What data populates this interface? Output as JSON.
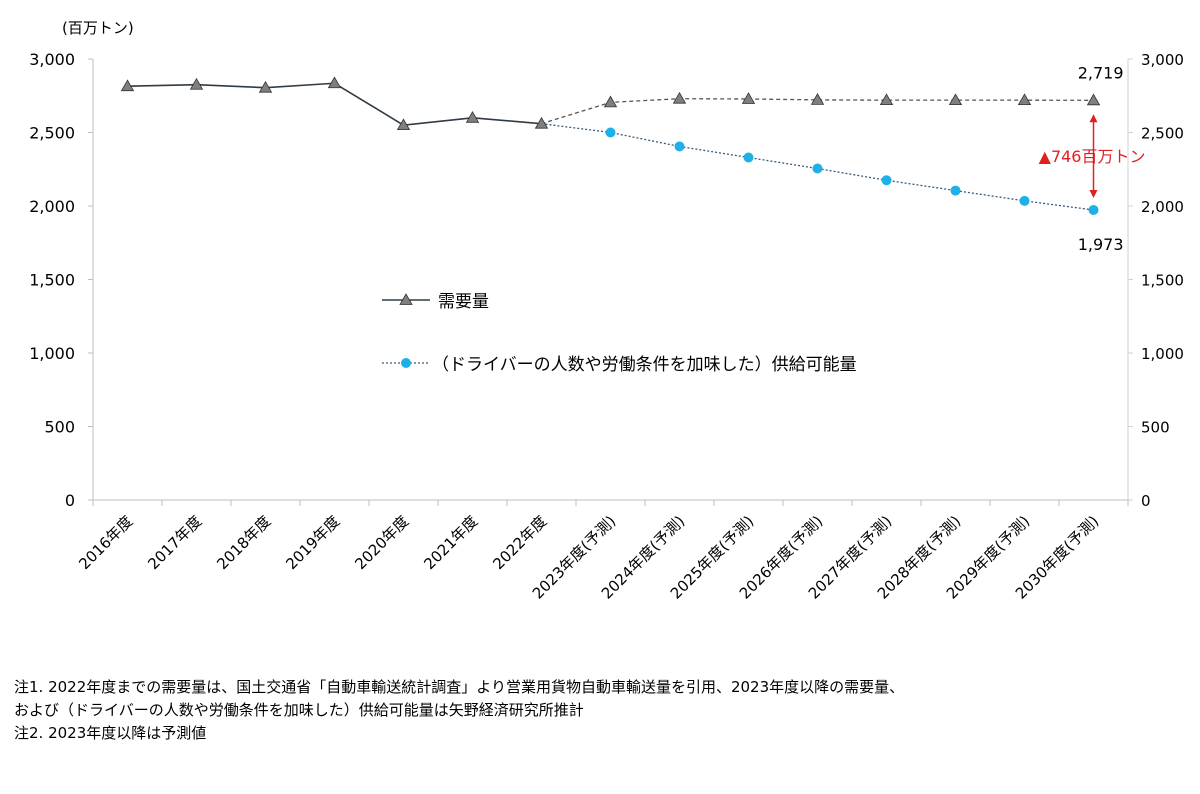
{
  "chart_data": {
    "type": "line",
    "unit_label": "(百万トン)",
    "categories": [
      "2016年度",
      "2017年度",
      "2018年度",
      "2019年度",
      "2020年度",
      "2021年度",
      "2022年度",
      "2023年度(予測)",
      "2024年度(予測)",
      "2025年度(予測)",
      "2026年度(予測)",
      "2027年度(予測)",
      "2028年度(予測)",
      "2029年度(予測)",
      "2030年度(予測)"
    ],
    "ylim": [
      0,
      3000
    ],
    "y_ticks": [
      "0",
      "500",
      "1,000",
      "1,500",
      "2,000",
      "2,500",
      "3,000"
    ],
    "series": [
      {
        "name": "需要量",
        "color": "#2f3b45",
        "marker": "triangle",
        "marker_color": "#7f7f7f",
        "values": [
          2815,
          2825,
          2805,
          2835,
          2550,
          2600,
          2560,
          2705,
          2730,
          2728,
          2722,
          2720,
          2720,
          2720,
          2719
        ]
      },
      {
        "name": "（ドライバーの人数や労働条件を加味した）供給可能量",
        "color": "#3a5a78",
        "marker": "circle",
        "marker_color": "#1fb0e8",
        "values": [
          null,
          null,
          null,
          null,
          null,
          null,
          2560,
          2500,
          2405,
          2330,
          2255,
          2175,
          2105,
          2035,
          1973
        ]
      }
    ],
    "annotations": {
      "end_demand": "2,719",
      "end_supply": "1,973",
      "gap": "▲746百万トン",
      "gap_color": "#e02020"
    },
    "grid": false,
    "legend_position": "center"
  },
  "notes": [
    "注1.  2022年度までの需要量は、国土交通省「自動車輸送統計調査」より営業用貨物自動車輸送量を引用、2023年度以降の需要量、",
    "および（ドライバーの人数や労働条件を加味した）供給可能量は矢野経済研究所推計",
    "注2.  2023年度以降は予測値"
  ]
}
